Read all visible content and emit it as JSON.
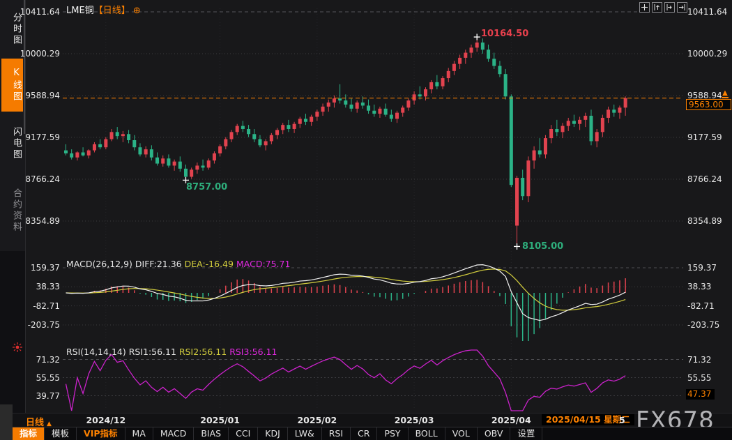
{
  "window": {
    "symbol": "LME铜",
    "period_bracket": "【日线】"
  },
  "icons": {
    "zoom_add": "⊕",
    "period_arrow": "▲",
    "latest_arrow": "▲"
  },
  "sidebar": {
    "tabs": [
      {
        "label": "分时图",
        "active": false
      },
      {
        "label": "K线图",
        "active": true
      },
      {
        "label": "闪电图",
        "active": false
      },
      {
        "label": "合约资料",
        "active": false,
        "dim": true
      }
    ]
  },
  "topbar_buttons": [
    "crosshair",
    "expand-pane-up",
    "expand-pane-right",
    "move-pane-right"
  ],
  "main_axis": {
    "left_labels": [
      "10411.64",
      "10000.29",
      "9588.94",
      "9177.59",
      "8766.24",
      "8354.89"
    ],
    "right_labels": [
      "10411.64",
      "10000.29",
      "9588.94",
      "9177.59",
      "8766.24",
      "8354.89"
    ]
  },
  "annotations": {
    "high": "10164.50",
    "low1": "8757.00",
    "low2": "8105.00",
    "last_price_box": "9563.00"
  },
  "macd": {
    "header_main": "MACD(26,12,9) DIFF:21.36",
    "header_dea": "DEA:-16.49",
    "header_macd": "MACD:75.71",
    "axis_labels": [
      "159.37",
      "38.33",
      "-82.71",
      "-203.75"
    ]
  },
  "rsi": {
    "header_main": "RSI(14,14,14) RSI1:56.11",
    "header_rsi2": "RSI2:56.11",
    "header_rsi3": "RSI3:56.11",
    "axis_labels": [
      "71.32",
      "55.55",
      "39.77"
    ],
    "right_axis_labels": [
      "71.32",
      "55.55"
    ],
    "current_value": "47.37"
  },
  "xaxis": {
    "period": "日线",
    "date_box": "2025/04/15 星期二",
    "partial_label": "5"
  },
  "toolbar": {
    "items": [
      {
        "label": "指标",
        "style": "selected"
      },
      {
        "label": "模板"
      },
      {
        "label": "VIP指标",
        "style": "vip"
      },
      {
        "label": "MA"
      },
      {
        "label": "MACD"
      },
      {
        "label": "BIAS"
      },
      {
        "label": "CCI"
      },
      {
        "label": "KDJ"
      },
      {
        "label": "LW&"
      },
      {
        "label": "RSI"
      },
      {
        "label": "CR"
      },
      {
        "label": "PSY"
      },
      {
        "label": "BOLL"
      },
      {
        "label": "VOL"
      },
      {
        "label": "OBV"
      },
      {
        "label": "设置"
      }
    ]
  },
  "watermark": "FX678",
  "colors": {
    "accent_orange": "#ff8200",
    "tab_orange": "#f57b00",
    "candle_up": "#e2434f",
    "candle_down": "#2bb387",
    "macd_diff_line": "#f2f2f2",
    "macd_dea_line": "#d4cf3e",
    "rsi_line": "#cc22cc",
    "annotation_red": "#e8404d",
    "annotation_green": "#2eae7c",
    "grid": "#3f3f43"
  },
  "chart_data": {
    "type": "candlestick",
    "title": "LME铜 日线",
    "price_axis": [
      10411.64,
      10000.29,
      9588.94,
      9177.59,
      8766.24,
      8354.89
    ],
    "last_close": 9563.0,
    "high_annotation": {
      "value": 10164.5,
      "index": 72
    },
    "low_annotations": [
      {
        "value": 8757.0,
        "index": 21
      },
      {
        "value": 8105.0,
        "index": 79
      }
    ],
    "months": [
      {
        "label": "2024/12",
        "index": 7
      },
      {
        "label": "2025/01",
        "index": 27
      },
      {
        "label": "2025/02",
        "index": 44
      },
      {
        "label": "2025/03",
        "index": 61
      },
      {
        "label": "2025/04",
        "index": 78
      }
    ],
    "indicators": {
      "macd": {
        "params": [
          26,
          12,
          9
        ],
        "axis": [
          159.37,
          38.33,
          -82.71,
          -203.75
        ],
        "diff": 21.36,
        "dea": -16.49,
        "macd": 75.71
      },
      "rsi": {
        "params": [
          14,
          14,
          14
        ],
        "axis": [
          71.32,
          55.55,
          39.77
        ],
        "values": [
          56.11,
          56.11,
          56.11
        ],
        "current_marker": 47.37
      }
    },
    "candles": [
      [
        9050,
        9110,
        9000,
        9020
      ],
      [
        9020,
        9060,
        8960,
        8980
      ],
      [
        8980,
        9040,
        8950,
        9030
      ],
      [
        9030,
        9080,
        8990,
        9000
      ],
      [
        9000,
        9060,
        8970,
        9050
      ],
      [
        9050,
        9130,
        9030,
        9110
      ],
      [
        9110,
        9160,
        9060,
        9080
      ],
      [
        9080,
        9180,
        9060,
        9160
      ],
      [
        9160,
        9260,
        9140,
        9230
      ],
      [
        9230,
        9280,
        9160,
        9190
      ],
      [
        9190,
        9240,
        9130,
        9210
      ],
      [
        9210,
        9250,
        9120,
        9150
      ],
      [
        9150,
        9200,
        9050,
        9080
      ],
      [
        9080,
        9120,
        8990,
        9010
      ],
      [
        9010,
        9090,
        8980,
        9060
      ],
      [
        9060,
        9100,
        8950,
        8980
      ],
      [
        8980,
        9030,
        8900,
        8920
      ],
      [
        8920,
        9000,
        8890,
        8970
      ],
      [
        8970,
        9010,
        8880,
        8900
      ],
      [
        8900,
        8960,
        8850,
        8940
      ],
      [
        8940,
        8990,
        8840,
        8870
      ],
      [
        8870,
        8910,
        8757,
        8790
      ],
      [
        8790,
        8880,
        8770,
        8860
      ],
      [
        8860,
        8930,
        8820,
        8900
      ],
      [
        8900,
        8960,
        8850,
        8880
      ],
      [
        8880,
        8970,
        8860,
        8950
      ],
      [
        8950,
        9040,
        8920,
        9020
      ],
      [
        9020,
        9110,
        8990,
        9090
      ],
      [
        9090,
        9180,
        9060,
        9160
      ],
      [
        9160,
        9250,
        9130,
        9230
      ],
      [
        9230,
        9310,
        9200,
        9290
      ],
      [
        9290,
        9340,
        9230,
        9260
      ],
      [
        9260,
        9300,
        9180,
        9210
      ],
      [
        9210,
        9260,
        9130,
        9160
      ],
      [
        9160,
        9200,
        9080,
        9100
      ],
      [
        9100,
        9160,
        9050,
        9140
      ],
      [
        9140,
        9220,
        9110,
        9200
      ],
      [
        9200,
        9270,
        9160,
        9250
      ],
      [
        9250,
        9320,
        9210,
        9300
      ],
      [
        9300,
        9350,
        9230,
        9260
      ],
      [
        9260,
        9330,
        9220,
        9310
      ],
      [
        9310,
        9380,
        9270,
        9360
      ],
      [
        9360,
        9410,
        9300,
        9330
      ],
      [
        9330,
        9400,
        9290,
        9380
      ],
      [
        9380,
        9450,
        9340,
        9430
      ],
      [
        9430,
        9510,
        9390,
        9480
      ],
      [
        9480,
        9550,
        9430,
        9520
      ],
      [
        9520,
        9590,
        9470,
        9560
      ],
      [
        9560,
        9700,
        9510,
        9540
      ],
      [
        9540,
        9600,
        9470,
        9500
      ],
      [
        9500,
        9560,
        9430,
        9460
      ],
      [
        9460,
        9540,
        9420,
        9520
      ],
      [
        9520,
        9580,
        9460,
        9490
      ],
      [
        9490,
        9550,
        9410,
        9440
      ],
      [
        9440,
        9500,
        9380,
        9410
      ],
      [
        9410,
        9480,
        9370,
        9460
      ],
      [
        9460,
        9510,
        9380,
        9400
      ],
      [
        9400,
        9450,
        9330,
        9360
      ],
      [
        9360,
        9440,
        9320,
        9420
      ],
      [
        9420,
        9490,
        9380,
        9470
      ],
      [
        9470,
        9560,
        9440,
        9540
      ],
      [
        9540,
        9630,
        9500,
        9600
      ],
      [
        9600,
        9680,
        9550,
        9580
      ],
      [
        9580,
        9670,
        9540,
        9650
      ],
      [
        9650,
        9740,
        9610,
        9720
      ],
      [
        9720,
        9790,
        9650,
        9680
      ],
      [
        9680,
        9780,
        9650,
        9760
      ],
      [
        9760,
        9860,
        9720,
        9830
      ],
      [
        9830,
        9930,
        9790,
        9900
      ],
      [
        9900,
        9990,
        9850,
        9960
      ],
      [
        9960,
        10040,
        9900,
        10010
      ],
      [
        10010,
        10090,
        9960,
        10060
      ],
      [
        10060,
        10164.5,
        10020,
        10110
      ],
      [
        10110,
        10150,
        10000,
        10040
      ],
      [
        10040,
        10090,
        9920,
        9950
      ],
      [
        9950,
        10010,
        9850,
        9880
      ],
      [
        9880,
        9930,
        9770,
        9800
      ],
      [
        9800,
        9850,
        9550,
        9580
      ],
      [
        9580,
        9600,
        8690,
        8710
      ],
      [
        8310,
        8800,
        8105,
        8780
      ],
      [
        8780,
        8860,
        8560,
        8600
      ],
      [
        8600,
        8990,
        8540,
        8950
      ],
      [
        8950,
        9090,
        8870,
        9050
      ],
      [
        9050,
        9170,
        8980,
        9010
      ],
      [
        9010,
        9200,
        8970,
        9170
      ],
      [
        9170,
        9300,
        9120,
        9260
      ],
      [
        9260,
        9350,
        9190,
        9230
      ],
      [
        9230,
        9320,
        9170,
        9290
      ],
      [
        9290,
        9370,
        9240,
        9340
      ],
      [
        9340,
        9400,
        9280,
        9310
      ],
      [
        9310,
        9380,
        9250,
        9350
      ],
      [
        9350,
        9420,
        9280,
        9390
      ],
      [
        9390,
        9450,
        9100,
        9140
      ],
      [
        9140,
        9260,
        9080,
        9230
      ],
      [
        9230,
        9400,
        9180,
        9370
      ],
      [
        9370,
        9480,
        9320,
        9450
      ],
      [
        9450,
        9500,
        9380,
        9420
      ],
      [
        9420,
        9490,
        9360,
        9470
      ],
      [
        9470,
        9580,
        9390,
        9563
      ]
    ]
  }
}
